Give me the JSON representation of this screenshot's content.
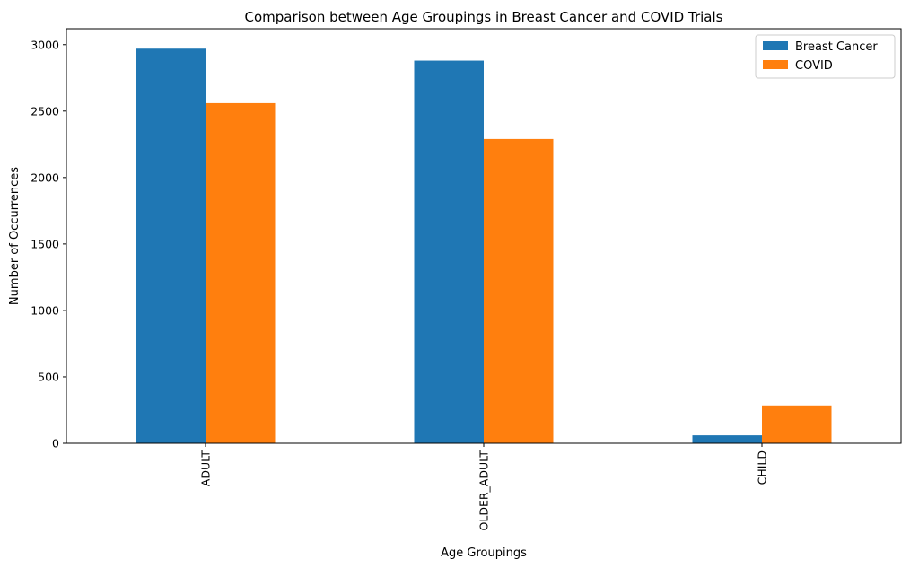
{
  "chart_data": {
    "type": "bar",
    "title": "Comparison between Age Groupings in Breast Cancer and COVID Trials",
    "xlabel": "Age Groupings",
    "ylabel": "Number of Occurrences",
    "categories": [
      "ADULT",
      "OLDER_ADULT",
      "CHILD"
    ],
    "series": [
      {
        "name": "Breast Cancer",
        "color": "#1f77b4",
        "values": [
          2970,
          2880,
          60
        ]
      },
      {
        "name": "COVID",
        "color": "#ff7f0e",
        "values": [
          2560,
          2290,
          285
        ]
      }
    ],
    "ylim": [
      0,
      3120
    ],
    "yticks": [
      0,
      500,
      1000,
      1500,
      2000,
      2500,
      3000
    ],
    "legend_position": "top-right",
    "grid": false
  }
}
